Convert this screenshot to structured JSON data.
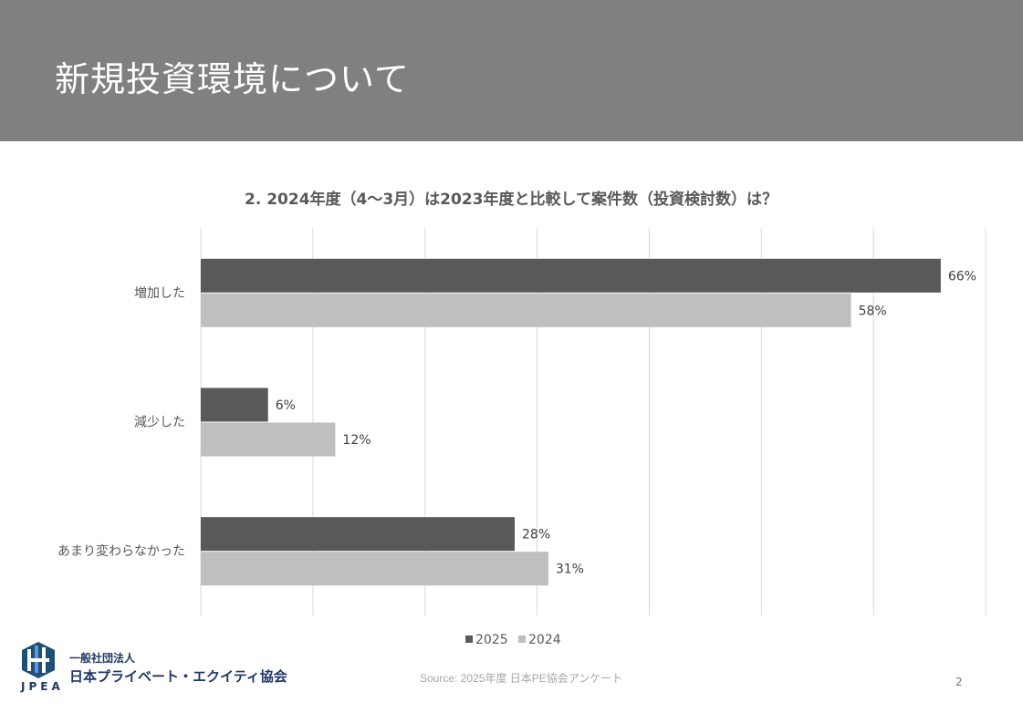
{
  "header": {
    "title": "新規投資環境について"
  },
  "chart_data": {
    "type": "bar",
    "orientation": "horizontal",
    "title": "2. 2024年度（4〜3月）は2023年度と比較して案件数（投資検討数）は？",
    "categories": [
      "増加した",
      "減少した",
      "あまり変わらなかった"
    ],
    "series": [
      {
        "name": "2025",
        "color": "#595959",
        "values": [
          66,
          6,
          28
        ],
        "labels": [
          "66%",
          "6%",
          "28%"
        ]
      },
      {
        "name": "2024",
        "color": "#bfbfbf",
        "values": [
          58,
          12,
          31
        ],
        "labels": [
          "58%",
          "12%",
          "31%"
        ]
      }
    ],
    "xlim": [
      0,
      70
    ],
    "grid": true,
    "legend": "bottom"
  },
  "footer": {
    "source": "Source: 2025年度 日本PE協会アンケート",
    "page": "2",
    "org_line1": "一般社団法人",
    "org_line2": "日本プライベート・エクイティ協会",
    "logo_text": "JPEA"
  }
}
